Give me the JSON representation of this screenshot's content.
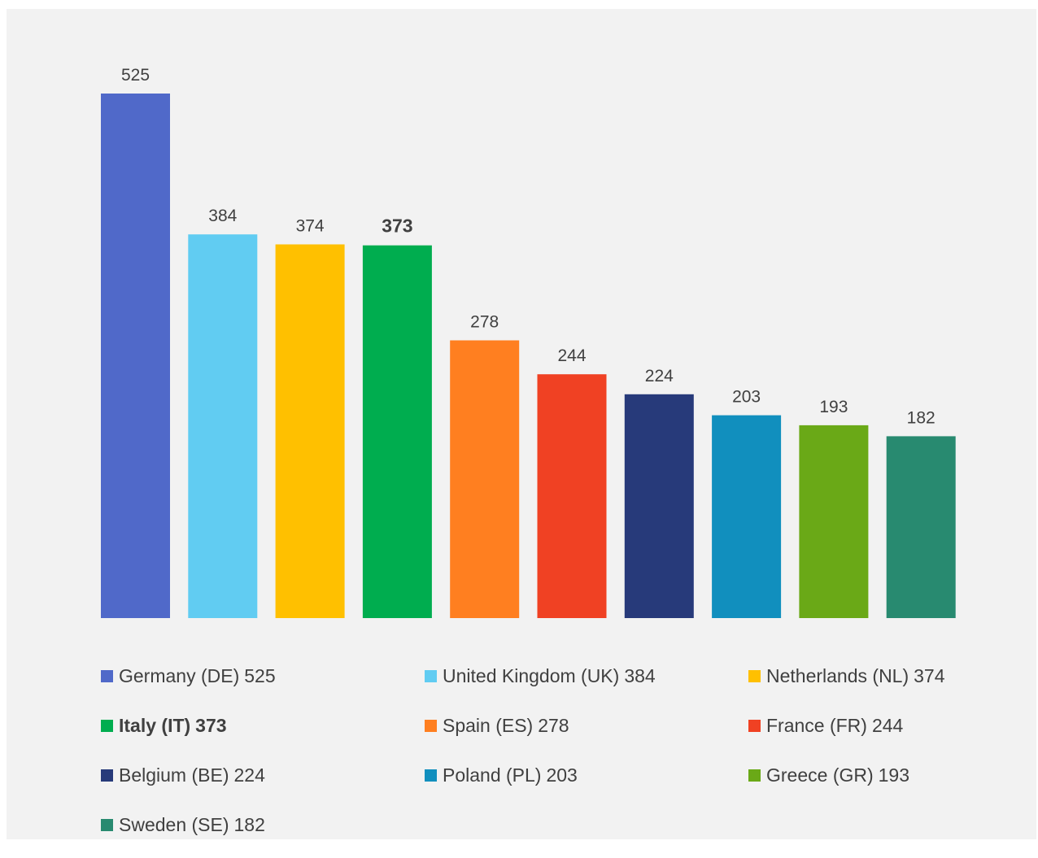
{
  "chart_data": {
    "type": "bar",
    "title": "",
    "xlabel": "",
    "ylabel": "",
    "ylim": [
      0,
      525
    ],
    "grid": false,
    "legend_placement": "bottom",
    "categories": [
      "Germany (DE)",
      "United Kingdom (UK)",
      "Netherlands (NL)",
      "Italy (IT)",
      "Spain (ES)",
      "France (FR)",
      "Belgium (BE)",
      "Poland (PL)",
      "Greece (GR)",
      "Sweden (SE)"
    ],
    "values": [
      525,
      384,
      374,
      373,
      278,
      244,
      224,
      203,
      193,
      182
    ],
    "data_labels": [
      "525",
      "384",
      "374",
      "373",
      "278",
      "244",
      "224",
      "203",
      "193",
      "182"
    ],
    "colors": [
      "#5069c9",
      "#61ccf2",
      "#ffc000",
      "#00ad4f",
      "#ff7f20",
      "#f04123",
      "#273a7a",
      "#118fbe",
      "#6aa917",
      "#288a70"
    ],
    "highlighted": "Italy (IT)"
  }
}
